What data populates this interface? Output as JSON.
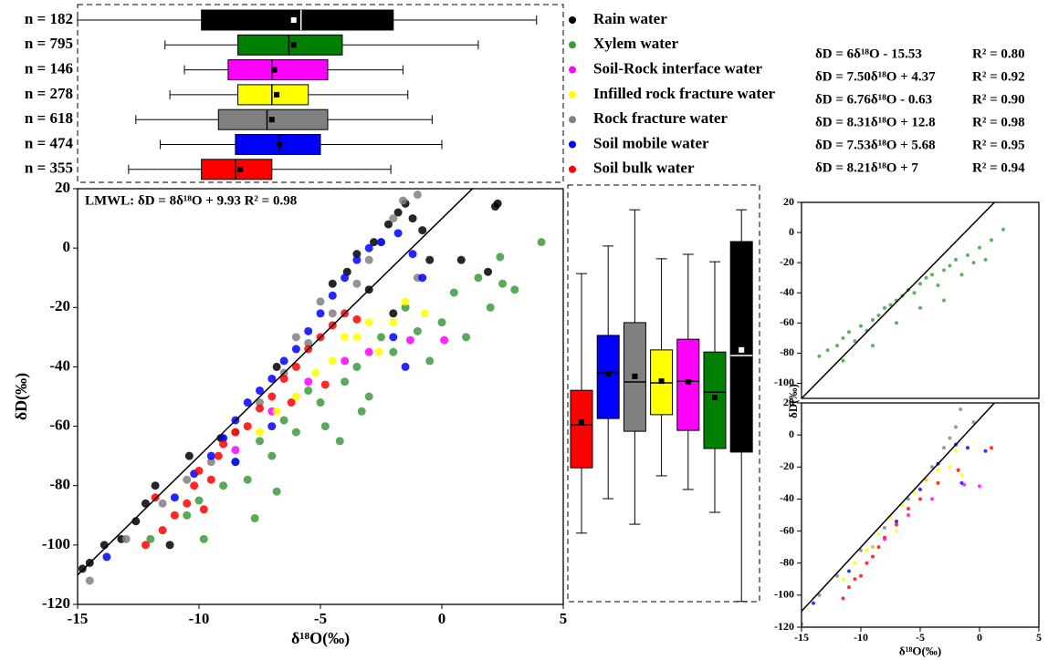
{
  "chart_data": [
    {
      "type": "boxplot",
      "orientation": "horizontal",
      "categories": [
        "n = 182",
        "n = 795",
        "n = 146",
        "n = 278",
        "n = 618",
        "n = 474",
        "n = 355"
      ],
      "colors": [
        "#000000",
        "#008000",
        "#ff00ff",
        "#ffff00",
        "#808080",
        "#0000ff",
        "#ff0000"
      ],
      "whisker_low": [
        -15,
        -11.4,
        -10.6,
        -11.2,
        -12.6,
        -11.6,
        -12.9
      ],
      "q1": [
        -9.9,
        -8.4,
        -8.8,
        -8.4,
        -9.2,
        -8.5,
        -9.9
      ],
      "median": [
        -5.8,
        -6.3,
        -7.0,
        -7.0,
        -7.2,
        -6.7,
        -8.5
      ],
      "q3": [
        -2.0,
        -4.1,
        -4.7,
        -5.5,
        -4.7,
        -5.0,
        -7.0
      ],
      "whisker_high": [
        3.9,
        1.5,
        -1.6,
        -1.4,
        -0.4,
        0.0,
        -2.1
      ],
      "mean": [
        -6.1,
        -6.1,
        -6.9,
        -6.8,
        -7.0,
        -6.7,
        -8.3
      ],
      "xlim": [
        -15,
        5
      ]
    },
    {
      "type": "scatter",
      "annotation": "LMWL: δD = 8δ¹⁸O + 9.93  R² = 0.98",
      "line": {
        "slope": 8,
        "intercept": 9.93
      },
      "xlabel": "δ¹⁸O(‰)",
      "ylabel": "δD(‰)",
      "xlim": [
        -15,
        5
      ],
      "ylim": [
        -120,
        20
      ],
      "xticks": [
        -15,
        -10,
        -5,
        0,
        5
      ],
      "yticks": [
        -120,
        -100,
        -80,
        -60,
        -40,
        -20,
        0,
        20
      ],
      "series": [
        {
          "name": "Rain water",
          "color": "#000000",
          "x": [
            -14.8,
            -14.5,
            -13.9,
            -13.2,
            -12.6,
            -12.2,
            -11.8,
            -11.2,
            -10.4,
            -9.1,
            -6.8,
            -4.5,
            -3.9,
            -3.5,
            -2.8,
            -2.2,
            -1.8,
            -1.5,
            -1.2,
            -0.8,
            -0.5,
            -2.0,
            0.8,
            2.2,
            2.3,
            1.9,
            -3.0
          ],
          "y": [
            -108,
            -106,
            -100,
            -98,
            -92,
            -86,
            -80,
            -100,
            -70,
            -64,
            -40,
            -12,
            -8,
            -2,
            2,
            8,
            12,
            15,
            10,
            6,
            -4,
            -22,
            -4,
            14,
            15,
            -8,
            -14
          ]
        },
        {
          "name": "Xylem water",
          "color": "#3c9a3c",
          "x": [
            -12.0,
            -10.5,
            -10.0,
            -9.0,
            -8.5,
            -8.0,
            -7.5,
            -7.0,
            -6.5,
            -6.0,
            -5.5,
            -5.0,
            -4.8,
            -4.0,
            -3.5,
            -3.0,
            -2.5,
            -2.0,
            -1.5,
            -1.0,
            -0.5,
            0,
            0.5,
            1.0,
            1.5,
            2.0,
            2.5,
            3.0,
            4.1,
            2.4,
            -6.8,
            -7.7,
            -9.8,
            -4.2,
            -3.3
          ],
          "y": [
            -98,
            -90,
            -85,
            -80,
            -72,
            -78,
            -65,
            -70,
            -58,
            -62,
            -48,
            -52,
            -60,
            -45,
            -40,
            -50,
            -30,
            -35,
            -20,
            -28,
            -38,
            -25,
            -15,
            -30,
            -10,
            -20,
            -12,
            -14,
            2,
            -3,
            -82,
            -91,
            -98,
            -65,
            -55
          ]
        },
        {
          "name": "Soil-Rock interface water",
          "color": "#ff00ff",
          "x": [
            -1.3,
            0.1,
            -3.0,
            -5.5,
            -7.0,
            -8.5,
            -4.0
          ],
          "y": [
            -31,
            -31,
            -35,
            -45,
            -55,
            -68,
            -38
          ]
        },
        {
          "name": "Infilled rock fracture water",
          "color": "#ffff00",
          "x": [
            -4.5,
            -3.5,
            -3.0,
            -2.0,
            -1.5,
            -0.7,
            -5.2,
            -6.0,
            -6.8,
            -7.5,
            -2.6,
            -4.0
          ],
          "y": [
            -38,
            -30,
            -25,
            -25,
            -18,
            -22,
            -42,
            -50,
            -55,
            -62,
            -35,
            -30
          ]
        },
        {
          "name": "Rock fracture water",
          "color": "#808080",
          "x": [
            -14.5,
            -13.0,
            -11.5,
            -10.5,
            -9.5,
            -8.5,
            -7.5,
            -6.5,
            -5.5,
            -4.5,
            -3.5,
            -3.0,
            -2.5,
            -2.0,
            -1.6,
            -1.0,
            -1.0,
            -5.0,
            -6.0
          ],
          "y": [
            -112,
            -98,
            -86,
            -78,
            -72,
            -62,
            -52,
            -42,
            -32,
            -22,
            -12,
            -4,
            2,
            10,
            16,
            18,
            -10,
            -18,
            -30
          ]
        },
        {
          "name": "Soil mobile water",
          "color": "#0000ff",
          "x": [
            -13.8,
            -11.0,
            -10.2,
            -9.5,
            -9.0,
            -8.5,
            -8.0,
            -7.5,
            -7.0,
            -6.5,
            -6.0,
            -5.5,
            -5.0,
            -4.5,
            -4.0,
            -3.5,
            -3.0,
            -2.5,
            -1.8,
            -1.2,
            -0.8,
            -1.5,
            -2.0,
            -7.0,
            -8.5
          ],
          "y": [
            -104,
            -84,
            -76,
            -70,
            -64,
            -58,
            -52,
            -48,
            -44,
            -38,
            -34,
            -28,
            -22,
            -16,
            -10,
            -4,
            0,
            2,
            5,
            -2,
            -10,
            -40,
            -30,
            -60,
            -72
          ]
        },
        {
          "name": "Soil bulk water",
          "color": "#ff0000",
          "x": [
            -12.2,
            -11.5,
            -11.0,
            -10.5,
            -10.2,
            -10.0,
            -9.5,
            -9.2,
            -9.0,
            -8.5,
            -8.0,
            -7.5,
            -7.0,
            -6.5,
            -6.0,
            -5.5,
            -5.0,
            -4.5,
            -4.0,
            -3.5,
            -4.8,
            -6.2,
            -11.8,
            -9.8
          ],
          "y": [
            -100,
            -95,
            -90,
            -86,
            -80,
            -75,
            -78,
            -70,
            -66,
            -62,
            -60,
            -54,
            -50,
            -44,
            -40,
            -34,
            -30,
            -26,
            -22,
            -24,
            -46,
            -52,
            -84,
            -88
          ]
        }
      ]
    },
    {
      "type": "boxplot",
      "orientation": "vertical",
      "colors": [
        "#ff0000",
        "#0000ff",
        "#808080",
        "#ffff00",
        "#ff00ff",
        "#008000",
        "#000000"
      ],
      "whisker_low": [
        -96,
        -84.4,
        -93,
        -76.7,
        -81.3,
        -89,
        -119
      ],
      "q1": [
        -74,
        -57.4,
        -61.7,
        -56.1,
        -61.4,
        -67.5,
        -68.7
      ],
      "median": [
        -59.5,
        -42,
        -45.1,
        -45.4,
        -44.8,
        -48.5,
        -36.2
      ],
      "q3": [
        -47.9,
        -29.4,
        -25.1,
        -34.3,
        -30.7,
        -35,
        2.2
      ],
      "whisker_high": [
        -8.6,
        0.7,
        12.9,
        -3.6,
        -2.1,
        -4.6,
        12.9
      ],
      "mean": [
        -58.6,
        -42.3,
        -43.2,
        -44.8,
        -45.1,
        -50.3,
        -34.3
      ],
      "ylim": [
        -120,
        20
      ]
    },
    {
      "type": "scatter",
      "equations": [
        "δD = 6δ¹⁸O - 15.53",
        "δD = 7.50δ¹⁸O + 4.37",
        "δD = 6.76δ¹⁸O - 0.63",
        "δD = 8.31δ¹⁸O + 12.8",
        "δD = 7.53δ¹⁸O + 5.68",
        "δD = 8.21δ¹⁸O + 7"
      ],
      "r2": [
        "R² = 0.80",
        "R² = 0.92",
        "R² = 0.90",
        "R² = 0.98",
        "R² = 0.95",
        "R² = 0.94"
      ],
      "line": {
        "slope": 8,
        "intercept": 9.93
      },
      "xlim": [
        -15,
        5
      ],
      "ylim": [
        -110,
        20
      ],
      "yticks": [
        -100,
        -80,
        -60,
        -40,
        -20,
        0,
        20
      ],
      "series": [
        {
          "color": "#3c9a3c",
          "x": [
            -13.5,
            -12.8,
            -12.0,
            -11.5,
            -11.0,
            -10.5,
            -10.0,
            -9.5,
            -9.0,
            -8.5,
            -8.0,
            -7.5,
            -7.0,
            -6.5,
            -6.0,
            -5.5,
            -5.0,
            -4.5,
            -4.0,
            -3.5,
            -3.0,
            -2.5,
            -2.0,
            -1.5,
            -1.0,
            -0.5,
            0,
            0.5,
            1.0,
            2.0,
            -9.0,
            -7.0,
            -5.0,
            -11.5,
            -3.0
          ],
          "y": [
            -82,
            -78,
            -75,
            -70,
            -66,
            -72,
            -62,
            -65,
            -58,
            -55,
            -50,
            -48,
            -45,
            -42,
            -38,
            -40,
            -34,
            -30,
            -28,
            -35,
            -25,
            -22,
            -18,
            -28,
            -15,
            -20,
            -10,
            -18,
            -5,
            2,
            -75,
            -60,
            -50,
            -85,
            -45
          ]
        }
      ]
    },
    {
      "type": "scatter",
      "xlabel": "δ¹⁸O(‰)",
      "ylabel": "δD(‰)",
      "line": {
        "slope": 8,
        "intercept": 9.93
      },
      "xlim": [
        -15,
        5
      ],
      "ylim": [
        -120,
        20
      ],
      "xticks": [
        -15,
        -10,
        -5,
        0,
        5
      ],
      "yticks": [
        -120,
        -100,
        -80,
        -60,
        -40,
        -20,
        0,
        20
      ],
      "series": [
        {
          "color": "#808080",
          "x": [
            -15,
            -13.5,
            -12,
            -10,
            -8,
            -6,
            -4,
            -3,
            -2,
            -1.6,
            -0.5,
            -2.5
          ],
          "y": [
            -118,
            -100,
            -88,
            -72,
            -58,
            -40,
            -20,
            -8,
            5,
            16,
            8,
            -2
          ]
        },
        {
          "color": "#0000ff",
          "x": [
            -14,
            -11,
            -9,
            -7,
            -5,
            -3.5,
            -2,
            -1,
            0.5,
            -1.5
          ],
          "y": [
            -105,
            -85,
            -70,
            -54,
            -34,
            -18,
            -6,
            -8,
            -10,
            -30
          ]
        },
        {
          "color": "#ff0000",
          "x": [
            -11.5,
            -11,
            -10.5,
            -10,
            -9.5,
            -9,
            -8.5,
            -8,
            -7,
            -6,
            -5,
            -3.5,
            -1.8,
            1,
            -4.5
          ],
          "y": [
            -102,
            -95,
            -90,
            -88,
            -80,
            -76,
            -70,
            -64,
            -56,
            -46,
            -40,
            -30,
            -22,
            -8,
            -28
          ]
        },
        {
          "color": "#ffff00",
          "x": [
            -11.5,
            -10.5,
            -9.5,
            -8.5,
            -7.5,
            -6.5,
            -5.5,
            -4.5,
            -3.5,
            -2.5,
            -1.5,
            -2.0,
            -7.0,
            -9.0,
            -6.0
          ],
          "y": [
            -90,
            -80,
            -72,
            -62,
            -52,
            -44,
            -36,
            -28,
            -22,
            -20,
            -25,
            -10,
            -60,
            -70,
            -50
          ]
        },
        {
          "color": "#ff00ff",
          "x": [
            -6,
            -1.3,
            0,
            -4,
            -8
          ],
          "y": [
            -50,
            -31,
            -32,
            -40,
            -65
          ]
        }
      ]
    }
  ]
}
